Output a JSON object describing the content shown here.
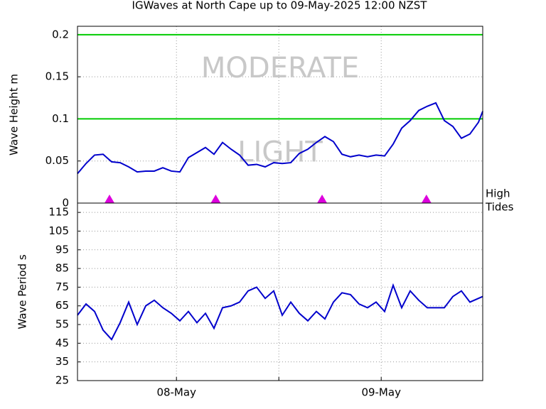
{
  "chart_data": [
    {
      "type": "line",
      "title": "IGWaves at North Cape up to 09-May-2025 12:00 NZST",
      "y_label": "Wave Height m",
      "x": [
        0.4,
        1.4,
        2.4,
        3.4,
        4.4,
        5.4,
        6.4,
        7.4,
        8.4,
        9.4,
        10.4,
        11.4,
        12.4,
        13.4,
        14.4,
        15.4,
        16.4,
        17.4,
        18.4,
        19.4,
        20.4,
        21.4,
        22.4,
        23.4,
        24.4,
        25.4,
        26.4,
        27.4,
        28.4,
        29.4,
        30.4,
        31.4,
        32.4,
        33.4,
        34.4,
        35.4,
        36.4,
        37.4,
        38.4,
        39.4,
        40.4,
        41.4,
        42.4,
        43.4,
        44.4,
        45.4,
        46.4,
        47.4,
        47.9
      ],
      "series": [
        {
          "color": "#0000cc",
          "values": [
            0.035,
            0.047,
            0.057,
            0.058,
            0.049,
            0.048,
            0.043,
            0.037,
            0.038,
            0.038,
            0.042,
            0.038,
            0.037,
            0.054,
            0.06,
            0.066,
            0.058,
            0.072,
            0.064,
            0.057,
            0.045,
            0.046,
            0.043,
            0.048,
            0.047,
            0.048,
            0.059,
            0.064,
            0.072,
            0.079,
            0.073,
            0.058,
            0.055,
            0.057,
            0.055,
            0.057,
            0.056,
            0.07,
            0.089,
            0.098,
            0.11,
            0.115,
            0.119,
            0.098,
            0.091,
            0.077,
            0.082,
            0.096,
            0.109
          ]
        }
      ],
      "zones": [
        {
          "label": "LIGHT",
          "range": [
            0,
            0.1
          ]
        },
        {
          "label": "MODERATE",
          "range": [
            0.1,
            0.2
          ]
        }
      ],
      "zone_line_color": "#00cc00",
      "tides": {
        "label": [
          "High",
          "Tides"
        ],
        "x": [
          4.15,
          16.6,
          29.07,
          41.3
        ],
        "color": "#dd00dd"
      },
      "xlim": [
        0.4,
        47.9
      ],
      "xgrid": [
        12,
        24,
        36
      ],
      "ylim": [
        0,
        0.21
      ],
      "yticks": [
        0,
        0.05,
        0.1,
        0.15,
        0.2
      ],
      "grid": true
    },
    {
      "type": "line",
      "y_label": "Wave Period s",
      "x": [
        0.4,
        1.4,
        2.4,
        3.4,
        4.4,
        5.4,
        6.4,
        7.4,
        8.4,
        9.4,
        10.4,
        11.4,
        12.4,
        13.4,
        14.4,
        15.4,
        16.4,
        17.4,
        18.4,
        19.4,
        20.4,
        21.4,
        22.4,
        23.4,
        24.4,
        25.4,
        26.4,
        27.4,
        28.4,
        29.4,
        30.4,
        31.4,
        32.4,
        33.4,
        34.4,
        35.4,
        36.4,
        37.4,
        38.4,
        39.4,
        40.4,
        41.4,
        42.4,
        43.4,
        44.4,
        45.4,
        46.4,
        47.4,
        47.9
      ],
      "series": [
        {
          "color": "#0000cc",
          "values": [
            60,
            66,
            62,
            52,
            47,
            56,
            67,
            55,
            65,
            68,
            64,
            61,
            57,
            62,
            56,
            61,
            53,
            64,
            65,
            67,
            73,
            75,
            69,
            73,
            60,
            67,
            61,
            57,
            62,
            58,
            67,
            72,
            71,
            66,
            64,
            67,
            62,
            76,
            64,
            73,
            68,
            64,
            64,
            64,
            70,
            73,
            67,
            69,
            70
          ]
        }
      ],
      "xlim": [
        0.4,
        47.9
      ],
      "xticks": [
        {
          "value": 12,
          "label": "08-May"
        },
        {
          "value": 24,
          "label": null
        },
        {
          "value": 36,
          "label": "09-May"
        }
      ],
      "ylim": [
        25,
        120
      ],
      "yticks": [
        25,
        35,
        45,
        55,
        65,
        75,
        85,
        95,
        105,
        115
      ],
      "grid": true
    }
  ]
}
